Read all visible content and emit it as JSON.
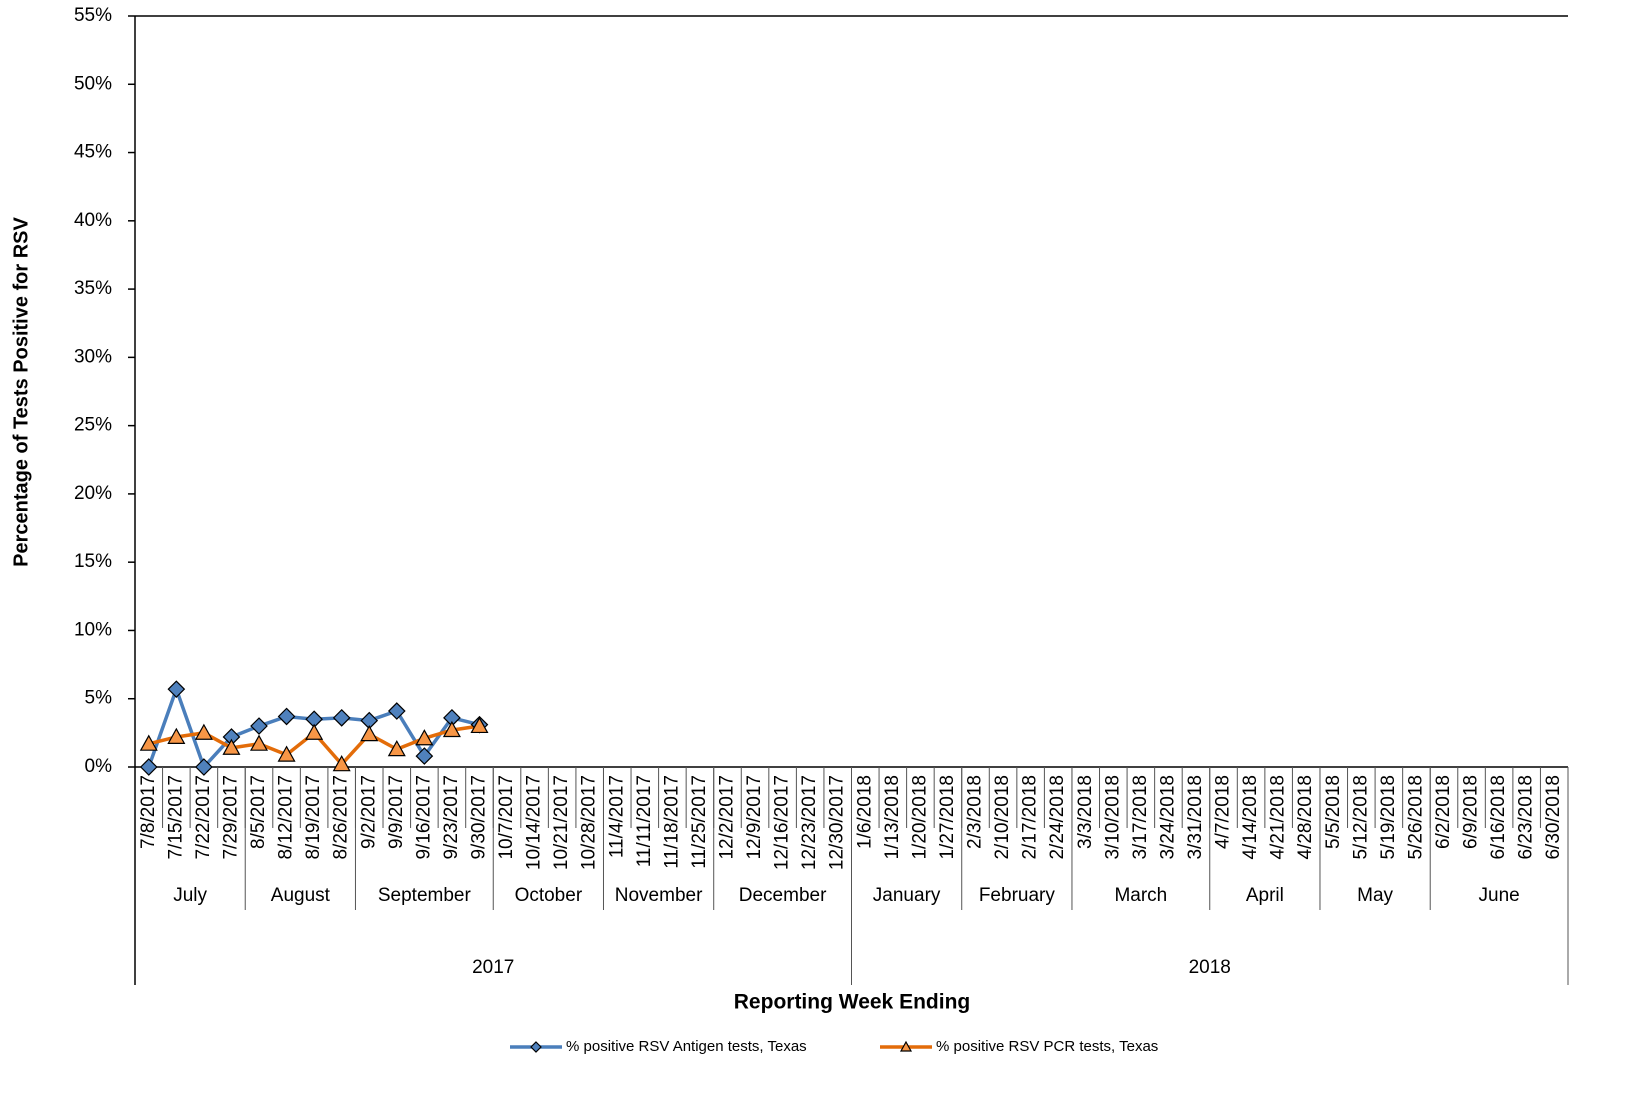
{
  "chart_data": {
    "type": "line",
    "y_label": "Percentage of Tests Positive for RSV",
    "x_label": "Reporting Week Ending",
    "categories": [
      "7/8/2017",
      "7/15/2017",
      "7/22/2017",
      "7/29/2017",
      "8/5/2017",
      "8/12/2017",
      "8/19/2017",
      "8/26/2017",
      "9/2/2017",
      "9/9/2017",
      "9/16/2017",
      "9/23/2017",
      "9/30/2017",
      "10/7/2017",
      "10/14/2017",
      "10/21/2017",
      "10/28/2017",
      "11/4/2017",
      "11/11/2017",
      "11/18/2017",
      "11/25/2017",
      "12/2/2017",
      "12/9/2017",
      "12/16/2017",
      "12/23/2017",
      "12/30/2017",
      "1/6/2018",
      "1/13/2018",
      "1/20/2018",
      "1/27/2018",
      "2/3/2018",
      "2/10/2018",
      "2/17/2018",
      "2/24/2018",
      "3/3/2018",
      "3/10/2018",
      "3/17/2018",
      "3/24/2018",
      "3/31/2018",
      "4/7/2018",
      "4/14/2018",
      "4/21/2018",
      "4/28/2018",
      "5/5/2018",
      "5/12/2018",
      "5/19/2018",
      "5/26/2018",
      "6/2/2018",
      "6/9/2018",
      "6/16/2018",
      "6/23/2018",
      "6/30/2018"
    ],
    "months": [
      "July",
      "August",
      "September",
      "October",
      "November",
      "December",
      "January",
      "February",
      "March",
      "April",
      "May",
      "June"
    ],
    "years": [
      "2017",
      "2018"
    ],
    "series": [
      {
        "name": "% positive RSV Antigen tests, Texas",
        "color": "#4f81bd",
        "line_color": "#4a7ebb",
        "marker": "diamond",
        "values": [
          0,
          5.7,
          0,
          2.2,
          3.0,
          3.7,
          3.5,
          3.6,
          3.4,
          4.1,
          0.8,
          3.6,
          3.1,
          null,
          null,
          null,
          null,
          null,
          null,
          null,
          null,
          null,
          null,
          null,
          null,
          null,
          null,
          null,
          null,
          null,
          null,
          null,
          null,
          null,
          null,
          null,
          null,
          null,
          null,
          null,
          null,
          null,
          null,
          null,
          null,
          null,
          null,
          null,
          null,
          null,
          null,
          null
        ]
      },
      {
        "name": "% positive RSV PCR tests, Texas",
        "color": "#f79646",
        "line_color": "#e36c09",
        "marker": "triangle",
        "values": [
          1.7,
          2.2,
          2.5,
          1.4,
          1.7,
          0.9,
          2.5,
          0.2,
          2.4,
          1.3,
          2.1,
          2.7,
          3.0,
          null,
          null,
          null,
          null,
          null,
          null,
          null,
          null,
          null,
          null,
          null,
          null,
          null,
          null,
          null,
          null,
          null,
          null,
          null,
          null,
          null,
          null,
          null,
          null,
          null,
          null,
          null,
          null,
          null,
          null,
          null,
          null,
          null,
          null,
          null,
          null,
          null,
          null,
          null
        ]
      }
    ],
    "ylim": [
      0,
      55
    ],
    "yticks": [
      {
        "value": 0,
        "label": "0%"
      },
      {
        "value": 5,
        "label": "5%"
      },
      {
        "value": 10,
        "label": "10%"
      },
      {
        "value": 15,
        "label": "15%"
      },
      {
        "value": 20,
        "label": "20%"
      },
      {
        "value": 25,
        "label": "25%"
      },
      {
        "value": 30,
        "label": "30%"
      },
      {
        "value": 35,
        "label": "35%"
      },
      {
        "value": 40,
        "label": "40%"
      },
      {
        "value": 45,
        "label": "45%"
      },
      {
        "value": 50,
        "label": "50%"
      },
      {
        "value": 55,
        "label": "55%"
      }
    ],
    "grid": false
  }
}
